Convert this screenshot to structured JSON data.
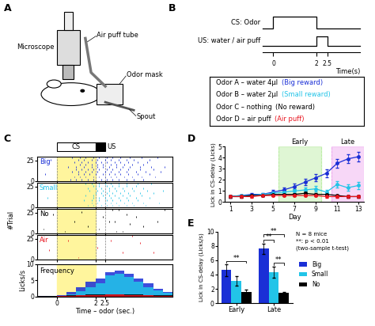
{
  "panel_labels": [
    "A",
    "B",
    "C",
    "D",
    "E"
  ],
  "schematic": {
    "labels": {
      "microscope": "Microscope",
      "air_puff_tube": "Air puff tube",
      "odor_mask": "Odor mask",
      "spout": "Spout"
    }
  },
  "timing_diagram": {
    "cs": {
      "label": "CS: Odor",
      "onset": 0,
      "offset": 2
    },
    "us": {
      "label": "US: water / air puff",
      "onset": 2,
      "offset": 2.5
    },
    "xlim": [
      -0.5,
      4.0
    ],
    "xticks": [
      0,
      2,
      2.5
    ],
    "xlabel": "Time(s)",
    "pairings": [
      {
        "text": "Odor A – water 4µl",
        "label": "(Big reward)",
        "color": "#1a2fd6"
      },
      {
        "text": "Odor B – water 2µl",
        "label": "(Small reward)",
        "color": "#22c4e8"
      },
      {
        "text": "Odor C – nothing",
        "label": "(No reward)",
        "color": "#000000"
      },
      {
        "text": "Odor D – air puff",
        "label": "(Air puff)",
        "color": "#e8141e"
      }
    ]
  },
  "chart_data": [
    {
      "type": "raster",
      "xlim": [
        -1,
        6
      ],
      "xticks": [
        0,
        2,
        2.5
      ],
      "ylim": [
        0,
        30
      ],
      "yticks": [
        0,
        25
      ],
      "ylabel": "#Trial",
      "tick_labels": "y",
      "cs": {
        "label": "CS",
        "start": 0,
        "end": 2,
        "color": "#fff59d"
      },
      "us": {
        "label": "US",
        "start": 2,
        "end": 2.5,
        "color": "#000000"
      },
      "series": [
        {
          "name": "Big",
          "color": "#1a2fd6",
          "trials": [
            2,
            5,
            8,
            11,
            14,
            17,
            20,
            23,
            26,
            29
          ],
          "licks": [
            [
              0.7,
              1.0,
              1.3,
              1.6,
              1.9,
              2.3,
              2.6,
              2.9,
              3.2,
              3.6,
              4.0,
              4.5
            ],
            [
              0.9,
              1.2,
              1.5,
              1.9,
              2.2,
              2.5,
              2.8,
              3.1,
              3.5,
              3.9,
              4.4,
              5.1
            ],
            [
              -0.6,
              1.1,
              1.4,
              1.7,
              2.0,
              2.4,
              2.7,
              3.0,
              3.3,
              3.7,
              4.2,
              4.8
            ],
            [
              0.8,
              1.1,
              1.5,
              1.8,
              2.1,
              2.5,
              2.8,
              3.2,
              3.6,
              4.1,
              4.6,
              5.4
            ],
            [
              1.0,
              1.3,
              1.6,
              1.9,
              2.2,
              2.6,
              2.9,
              3.3,
              3.7,
              4.3,
              5.0
            ],
            [
              0.6,
              1.0,
              1.4,
              1.8,
              2.1,
              2.4,
              2.7,
              3.1,
              3.4,
              3.8,
              4.3,
              4.9,
              5.6
            ],
            [
              1.2,
              1.5,
              1.8,
              2.1,
              2.4,
              2.8,
              3.1,
              3.5,
              3.9,
              4.5
            ],
            [
              0.9,
              1.3,
              1.6,
              2.0,
              2.3,
              2.6,
              3.0,
              3.3,
              3.7,
              4.2,
              4.7
            ],
            [
              -0.3,
              1.1,
              1.4,
              1.8,
              2.1,
              2.5,
              2.8,
              3.2,
              3.6,
              4.0,
              4.8
            ],
            [
              0.8,
              1.2,
              1.5,
              1.9,
              2.2,
              2.6,
              2.9,
              3.3,
              3.8,
              4.4,
              5.2
            ]
          ]
        },
        {
          "name": "Small",
          "color": "#22c4e8",
          "trials": [
            2,
            5,
            8,
            11,
            14,
            17,
            20,
            23,
            26,
            29
          ],
          "licks": [
            [
              1.6,
              1.9,
              2.3,
              2.6,
              2.9,
              3.2,
              3.6,
              4.0,
              4.6
            ],
            [
              1.8,
              2.1,
              2.5,
              2.8,
              3.1,
              3.5,
              3.9,
              4.5,
              5.3
            ],
            [
              1.4,
              1.8,
              2.2,
              2.6,
              2.9,
              3.3,
              3.7,
              4.2
            ],
            [
              -0.5,
              1.9,
              2.2,
              2.5,
              2.8,
              3.2,
              3.6,
              4.1,
              4.8
            ],
            [
              1.5,
              1.9,
              2.4,
              2.7,
              3.0,
              3.4,
              3.8,
              4.4
            ],
            [
              2.0,
              2.3,
              2.6,
              2.9,
              3.3,
              3.7,
              4.3,
              5.0
            ],
            [
              1.7,
              2.1,
              2.4,
              2.7,
              3.1,
              3.5,
              4.0,
              4.7,
              5.5
            ],
            [
              1.6,
              2.0,
              2.3,
              2.7,
              3.0,
              3.4,
              3.9,
              4.5
            ],
            [
              1.9,
              2.2,
              2.6,
              2.9,
              3.2,
              3.6,
              4.1
            ],
            [
              1.5,
              1.8,
              2.2,
              2.5,
              2.8,
              3.2,
              3.6,
              4.2,
              4.9
            ]
          ]
        },
        {
          "name": "No",
          "color": "#000000",
          "trials": [
            2,
            5,
            8,
            11,
            14,
            17,
            20,
            23,
            26,
            29
          ],
          "licks": [
            [
              0.4,
              3.1,
              3.4
            ],
            [
              -0.7,
              2.2
            ],
            [
              1.6,
              4.5
            ],
            [
              3.8
            ],
            [
              0.9,
              2.7,
              3.0,
              5.2
            ],
            [],
            [
              2.4,
              4.1
            ],
            [
              -0.2,
              3.6
            ],
            [
              1.3
            ],
            [
              2.9,
              3.2,
              5.6
            ]
          ]
        },
        {
          "name": "Air",
          "color": "#e8141e",
          "trials": [
            2,
            5,
            8,
            11,
            14,
            17,
            20,
            23,
            26,
            29
          ],
          "licks": [
            [
              1.1
            ],
            [],
            [
              3.4,
              5.0
            ],
            [
              -0.4
            ],
            [
              2.1
            ],
            [],
            [
              4.3
            ],
            [
              0.6,
              2.8
            ],
            [],
            [
              3.9
            ]
          ]
        }
      ]
    },
    {
      "type": "histogram",
      "title": "Frequency",
      "xlabel": "Time – odor (sec.)",
      "ylabel": "Licks/s",
      "xlim": [
        -1,
        6
      ],
      "xticks": [
        0,
        2,
        2.5
      ],
      "ylim": [
        0,
        10
      ],
      "yticks": [
        0,
        5,
        10
      ],
      "bins": [
        -1,
        -0.5,
        0,
        0.5,
        1,
        1.5,
        2,
        2.5,
        3,
        3.5,
        4,
        4.5,
        5,
        5.5,
        6
      ],
      "series": [
        {
          "name": "Big",
          "color": "#1a2fd6",
          "counts": [
            0.2,
            0.3,
            0.5,
            1.5,
            3.0,
            4.5,
            5.5,
            7.5,
            8.0,
            7.0,
            5.5,
            4.0,
            2.5,
            1.5
          ]
        },
        {
          "name": "Small",
          "color": "#22c4e8",
          "counts": [
            0.1,
            0.2,
            0.3,
            0.8,
            1.8,
            3.0,
            4.0,
            6.5,
            7.0,
            6.0,
            4.5,
            3.0,
            2.0,
            1.2
          ]
        },
        {
          "name": "No",
          "color": "#000000",
          "counts": [
            0.2,
            0.2,
            0.3,
            0.4,
            0.5,
            0.6,
            0.6,
            0.8,
            0.8,
            0.7,
            0.6,
            0.5,
            0.5,
            0.4
          ]
        },
        {
          "name": "Air",
          "color": "#e8141e",
          "counts": [
            0.1,
            0.1,
            0.2,
            0.3,
            0.4,
            0.4,
            0.5,
            0.6,
            0.6,
            0.5,
            0.5,
            0.4,
            0.3,
            0.3
          ]
        }
      ]
    },
    {
      "type": "line",
      "xlabel": "Day",
      "ylabel": "Lick in CS-delay (Licks)",
      "x": [
        1,
        2,
        3,
        4,
        5,
        6,
        7,
        8,
        9,
        10,
        11,
        12,
        13
      ],
      "xlim": [
        0.5,
        13.5
      ],
      "xticks": [
        1,
        3,
        5,
        7,
        9,
        11,
        13
      ],
      "ylim": [
        0,
        5
      ],
      "yticks": [
        0,
        1,
        2,
        3,
        4,
        5
      ],
      "marker": "o",
      "line_style": "solid",
      "regions": [
        {
          "label": "Early",
          "start": 5.5,
          "end": 9.5,
          "color": "#b9eca0"
        },
        {
          "label": "Late",
          "start": 10.5,
          "end": 13.5,
          "color": "#eea8ee"
        }
      ],
      "series": [
        {
          "name": "Big",
          "color": "#1a2fd6",
          "values": [
            0.5,
            0.6,
            0.7,
            0.7,
            0.9,
            1.1,
            1.4,
            1.8,
            2.2,
            2.6,
            3.5,
            3.9,
            4.1
          ],
          "errors": [
            0.1,
            0.1,
            0.15,
            0.15,
            0.2,
            0.2,
            0.25,
            0.3,
            0.3,
            0.35,
            0.4,
            0.4,
            0.4
          ]
        },
        {
          "name": "Small",
          "color": "#22c4e8",
          "values": [
            0.5,
            0.6,
            0.6,
            0.7,
            0.8,
            0.9,
            1.0,
            1.1,
            1.2,
            0.9,
            1.6,
            1.3,
            1.5
          ],
          "errors": [
            0.1,
            0.1,
            0.1,
            0.15,
            0.15,
            0.2,
            0.2,
            0.2,
            0.25,
            0.2,
            0.3,
            0.3,
            0.3
          ]
        },
        {
          "name": "No",
          "color": "#000000",
          "values": [
            0.5,
            0.5,
            0.6,
            0.6,
            0.7,
            0.7,
            0.7,
            0.8,
            0.7,
            0.7,
            0.6,
            0.5,
            0.5
          ],
          "errors": [
            0.1,
            0.1,
            0.1,
            0.1,
            0.1,
            0.1,
            0.1,
            0.15,
            0.1,
            0.1,
            0.1,
            0.1,
            0.1
          ]
        },
        {
          "name": "Air",
          "color": "#e8141e",
          "values": [
            0.5,
            0.5,
            0.5,
            0.6,
            0.6,
            0.6,
            0.6,
            0.6,
            0.6,
            0.5,
            0.5,
            0.5,
            0.5
          ],
          "errors": [
            0.1,
            0.1,
            0.1,
            0.1,
            0.1,
            0.1,
            0.1,
            0.1,
            0.1,
            0.1,
            0.1,
            0.1,
            0.1
          ]
        }
      ]
    },
    {
      "type": "bar",
      "categories": [
        "Early",
        "Late"
      ],
      "ylabel": "Lick in CS-delay (Licks/s)",
      "ylim": [
        0,
        10
      ],
      "yticks": [
        0,
        2,
        4,
        6,
        8,
        10
      ],
      "legend": "center left",
      "series": [
        {
          "name": "Big",
          "color": "#1a2fd6",
          "values": [
            4.6,
            7.6
          ],
          "errors": [
            0.8,
            0.7
          ]
        },
        {
          "name": "Small",
          "color": "#22c4e8",
          "values": [
            3.1,
            4.3
          ],
          "errors": [
            0.7,
            0.8
          ]
        },
        {
          "name": "No",
          "color": "#000000",
          "values": [
            1.6,
            1.4
          ],
          "errors": [
            0.3,
            0.2
          ]
        }
      ],
      "annotations": [
        "N = 8 mice",
        "**: p < 0.01",
        "(two-sample t-test)"
      ],
      "significance": [
        {
          "category": "Early",
          "from": "Big",
          "to": "No",
          "label": "**"
        },
        {
          "category": "Late",
          "from": "Small",
          "to": "No",
          "label": "**"
        },
        {
          "category": "Late",
          "from": "Big",
          "to": "Small",
          "label": "**"
        },
        {
          "category": "Late",
          "from": "Big",
          "to": "No",
          "label": "**"
        }
      ]
    }
  ]
}
